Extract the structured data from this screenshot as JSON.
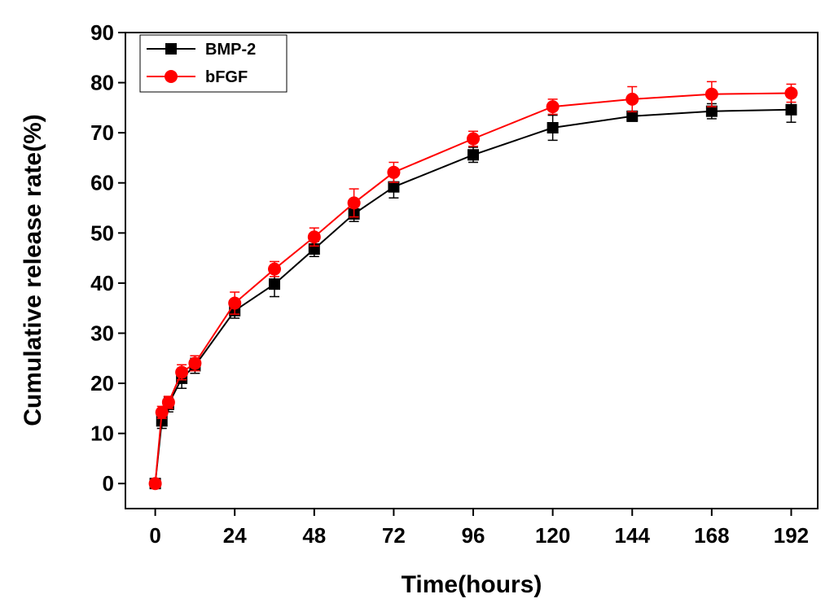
{
  "chart_data": {
    "type": "line",
    "xlabel": "Time(hours)",
    "ylabel": "Cumulative release rate(%)",
    "xlim": [
      -9,
      200
    ],
    "ylim": [
      -5,
      90
    ],
    "xticks": [
      0,
      24,
      48,
      72,
      96,
      120,
      144,
      168,
      192
    ],
    "yticks": [
      0,
      10,
      20,
      30,
      40,
      50,
      60,
      70,
      80,
      90
    ],
    "grid": false,
    "legend_position": "top-left",
    "series": [
      {
        "name": "BMP-2",
        "color": "#000000",
        "marker": "square",
        "x": [
          0,
          2,
          4,
          8,
          12,
          24,
          36,
          48,
          60,
          72,
          96,
          120,
          144,
          168,
          192
        ],
        "y": [
          0,
          12.5,
          15.8,
          21,
          23.5,
          34.5,
          39.8,
          46.8,
          53.8,
          59.2,
          65.6,
          71,
          73.3,
          74.3,
          74.6
        ],
        "error": [
          0,
          1.5,
          1.5,
          2,
          1.5,
          1.5,
          2.5,
          1.5,
          1.5,
          2.2,
          1.5,
          2.5,
          1.0,
          1.5,
          2.5
        ]
      },
      {
        "name": "bFGF",
        "color": "#ff0000",
        "marker": "circle",
        "x": [
          0,
          2,
          4,
          8,
          12,
          24,
          36,
          48,
          60,
          72,
          96,
          120,
          144,
          168,
          192
        ],
        "y": [
          0,
          14.2,
          16.2,
          22.2,
          24,
          36,
          42.8,
          49.2,
          56,
          62.1,
          68.8,
          75.2,
          76.7,
          77.7,
          77.9
        ],
        "error": [
          0,
          1.2,
          1.2,
          1.5,
          1.5,
          2.2,
          1.5,
          1.8,
          2.8,
          2.0,
          1.5,
          1.5,
          2.5,
          2.5,
          1.8
        ]
      }
    ]
  }
}
